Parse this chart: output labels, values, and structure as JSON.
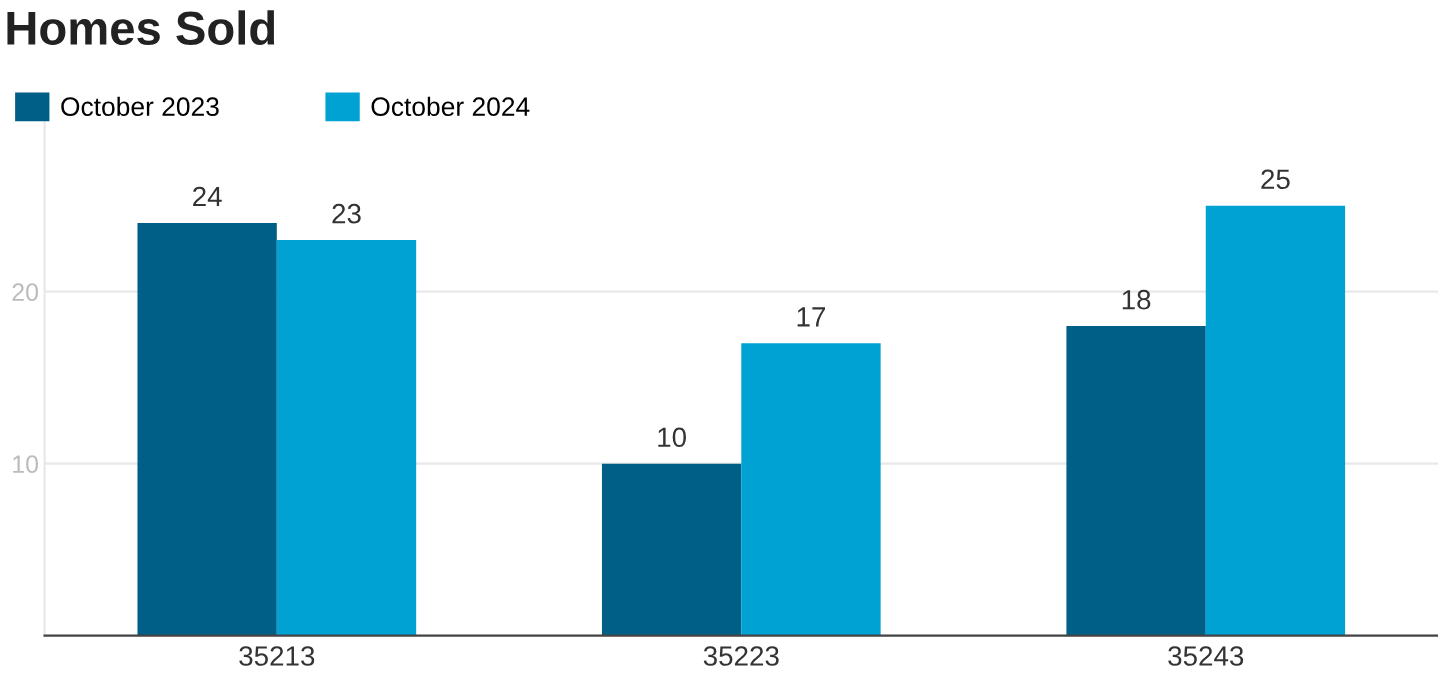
{
  "chart_data": {
    "type": "bar",
    "title": "Homes Sold",
    "categories": [
      "35213",
      "35223",
      "35243"
    ],
    "series": [
      {
        "name": "October 2023",
        "color": "#005f87",
        "values": [
          24,
          10,
          18
        ]
      },
      {
        "name": "October 2024",
        "color": "#00a2d3",
        "values": [
          23,
          17,
          25
        ]
      }
    ],
    "ylim": [
      0,
      30
    ],
    "yticks": [
      {
        "value": 0,
        "label": null
      },
      10,
      20
    ],
    "grid": "y",
    "legend": "top left",
    "data_labels": true
  }
}
